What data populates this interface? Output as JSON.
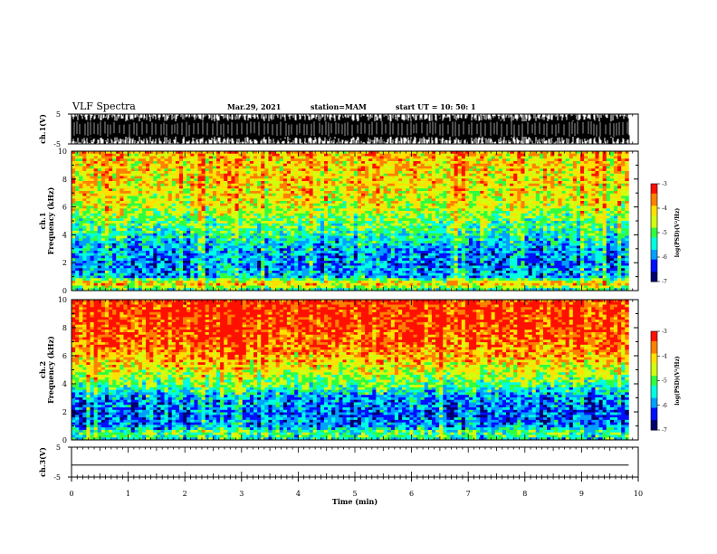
{
  "header": {
    "title": "VLF Spectra",
    "date": "Mar.29, 2021",
    "station": "station=MAM",
    "start": "start  UT =   10: 50: 1"
  },
  "colors": {
    "colormap": [
      "#00006e",
      "#0010ff",
      "#00a0ff",
      "#00ffe0",
      "#30ff40",
      "#d0ff10",
      "#ffe000",
      "#ff8000",
      "#ff1000",
      "#ffe0e0"
    ],
    "ch3_line": "#000000"
  },
  "chart_data": [
    {
      "type": "line",
      "panel": "ch1-waveform",
      "ylabel": "ch.1(V)",
      "yticks": [
        "5",
        "-5"
      ],
      "ylim": [
        -5,
        5
      ],
      "xlim": [
        0,
        10
      ],
      "x_unit": "min",
      "description_values": {
        "amplitude_range": [
          -5,
          5
        ]
      }
    },
    {
      "type": "heatmap",
      "panel": "ch1-spectrogram",
      "ylabel_top": "ch.1",
      "ylabel": "Frequency (kHz)",
      "yticks": [
        "0",
        "2",
        "4",
        "6",
        "8",
        "10"
      ],
      "ylim": [
        0,
        10
      ],
      "xlim": [
        0,
        9.83
      ],
      "colorbar": {
        "label": "log(PSD)(V²/Hz)",
        "range": [
          -7,
          -3
        ],
        "ticks": [
          "-3",
          "-4",
          "-5",
          "-6",
          "-7"
        ]
      },
      "level_profile": {
        "freq_khz": [
          0,
          0.5,
          1,
          2,
          3,
          4,
          5,
          6,
          7,
          8,
          9,
          10
        ],
        "log_psd": [
          -5.5,
          -4.0,
          -5.8,
          -6.0,
          -5.9,
          -5.3,
          -5.0,
          -4.5,
          -4.3,
          -4.2,
          -4.2,
          -4.0
        ]
      }
    },
    {
      "type": "heatmap",
      "panel": "ch2-spectrogram",
      "ylabel_top": "ch.2",
      "ylabel": "Frequency (kHz)",
      "yticks": [
        "0",
        "2",
        "4",
        "6",
        "8",
        "10"
      ],
      "ylim": [
        0,
        10
      ],
      "xlim": [
        0,
        9.83
      ],
      "colorbar": {
        "label": "log(PSD)(V²/Hz)",
        "range": [
          -7,
          -3
        ],
        "ticks": [
          "-3",
          "-4",
          "-5",
          "-6",
          "-7"
        ]
      },
      "level_profile": {
        "freq_khz": [
          0,
          0.5,
          1,
          2,
          3,
          4,
          5,
          6,
          7,
          8,
          9,
          10
        ],
        "log_psd": [
          -5.5,
          -5.0,
          -6.0,
          -6.1,
          -5.9,
          -5.0,
          -4.4,
          -3.9,
          -3.6,
          -3.4,
          -3.3,
          -3.3
        ]
      }
    },
    {
      "type": "line",
      "panel": "ch3-waveform",
      "ylabel": "ch.3(V)",
      "yticks": [
        "5",
        "-5"
      ],
      "ylim": [
        -5,
        5
      ],
      "x": [
        0,
        9.83
      ],
      "y": [
        -1,
        -1
      ],
      "xlabel": "Time (min)",
      "xticks": [
        "0",
        "1",
        "2",
        "3",
        "4",
        "5",
        "6",
        "7",
        "8",
        "9",
        "10"
      ],
      "xlim": [
        0,
        10
      ]
    }
  ]
}
